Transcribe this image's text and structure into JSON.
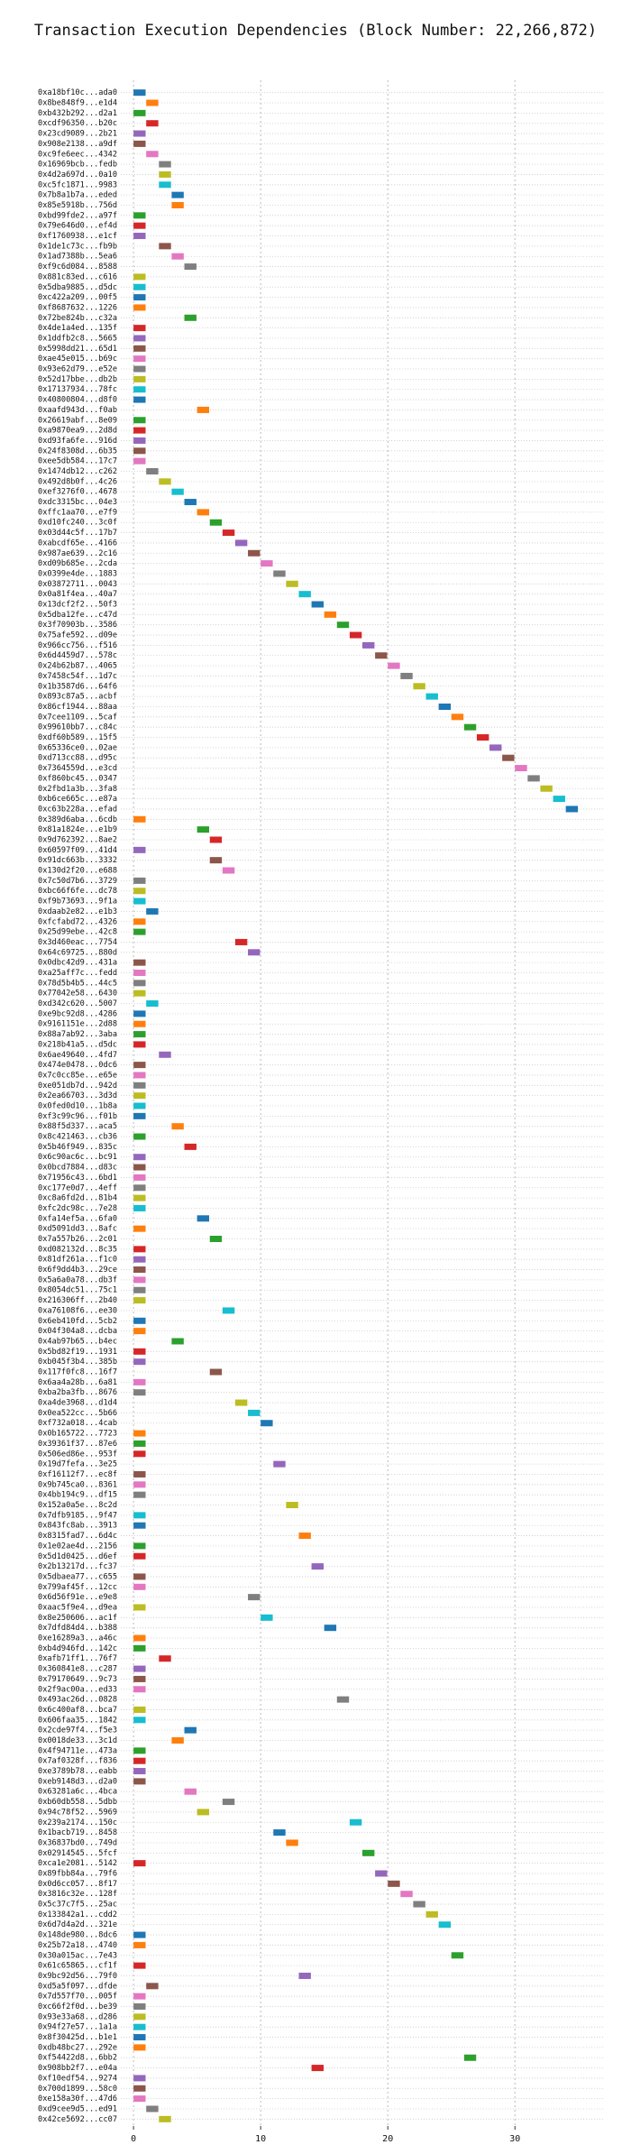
{
  "chart_data": {
    "type": "gantt",
    "title": "Transaction Execution Dependencies (Block Number: 22,266,872)",
    "categories": [
      "0xa18bf10c...ada0",
      "0x8be848f9...e1d4",
      "0xb432b292...d2a1",
      "0xcdf96350...b20c",
      "0x23cd9089...2b21",
      "0x908e2138...a9df",
      "0xc9fe6eec...4342",
      "0x16969bcb...fedb",
      "0x4d2a697d...0a10",
      "0xc5fc1871...9983",
      "0x7b8a1b7a...eded",
      "0x85e5918b...756d",
      "0xbd99fde2...a97f",
      "0x79e646d0...ef4d",
      "0xf1760938...e1cf",
      "0x1de1c73c...fb9b",
      "0x1ad7388b...5ea6",
      "0xf9c6d084...8588",
      "0x881c83ed...c616",
      "0x5dba9885...d5dc",
      "0xc422a209...00f5",
      "0xf8687632...1226",
      "0x72be824b...c32a",
      "0x4de1a4ed...135f",
      "0x1ddfb2c8...5665",
      "0x5998dd21...65d1",
      "0xae45e015...b69c",
      "0x93e62d79...e52e",
      "0x52d17bbe...db2b",
      "0x17137934...78fc",
      "0x40800804...d8f0",
      "0xaafd943d...f0ab",
      "0x26619abf...8e09",
      "0xa9870ea9...2d8d",
      "0xd93fa6fe...916d",
      "0x24f8308d...6b35",
      "0xee5db584...17c7",
      "0x1474db12...c262",
      "0x492d8b0f...4c26",
      "0xef3276f0...4678",
      "0xdc3315bc...04e3",
      "0xffc1aa70...e7f9",
      "0xd10fc240...3c0f",
      "0x03d44c5f...17b7",
      "0xabcdf65e...4166",
      "0x987ae639...2c16",
      "0xd09b685e...2cda",
      "0x0399e4de...1883",
      "0x03872711...0043",
      "0x0a81f4ea...40a7",
      "0x13dcf2f2...50f3",
      "0x5dba12fe...c47d",
      "0x3f70903b...3586",
      "0x75afe592...d09e",
      "0x966cc756...f516",
      "0x6d4459d7...578c",
      "0x24b62b87...4065",
      "0x7458c54f...1d7c",
      "0x1b3587d6...64f6",
      "0x893c87a5...acbf",
      "0x86cf1944...88aa",
      "0x7cee1109...5caf",
      "0x99610bb7...c84c",
      "0xdf60b589...15f5",
      "0x65336ce0...02ae",
      "0xd713cc88...d95c",
      "0x7364559d...e3cd",
      "0xf860bc45...0347",
      "0x2fbd1a3b...3fa8",
      "0xb6ce665c...e87a",
      "0xc63b228a...efad",
      "0x389d6aba...6cdb",
      "0x81a1824e...e1b9",
      "0x9d762392...8ae2",
      "0x60597f09...41d4",
      "0x91dc663b...3332",
      "0x130d2f20...e688",
      "0x7c50d7b6...3729",
      "0xbc66f6fe...dc78",
      "0xf9b73693...9f1a",
      "0xdaab2e82...e1b3",
      "0xfcfabd72...4326",
      "0x25d99ebe...42c8",
      "0x3d460eac...7754",
      "0x64c69725...880d",
      "0x0dbc42d9...431a",
      "0xa25aff7c...fedd",
      "0x78d5b4b5...44c5",
      "0x77042e58...6430",
      "0xd342c620...5007",
      "0xe9bc92d8...4286",
      "0x9161151e...2d88",
      "0x88a7ab92...3aba",
      "0x218b41a5...d5dc",
      "0x6ae49640...4fd7",
      "0x474e0478...0dc6",
      "0x7c0cc85e...e65e",
      "0xe051db7d...942d",
      "0x2ea66703...3d3d",
      "0x0fed0d10...1b8a",
      "0xf3c99c96...f01b",
      "0x88f5d337...aca5",
      "0x8c421463...cb36",
      "0x5b46f949...835c",
      "0x6c90ac6c...bc91",
      "0x0bcd7884...d83c",
      "0x71956c43...6bd1",
      "0xc177e0d7...4eff",
      "0xc8a6fd2d...81b4",
      "0xfc2dc98c...7e28",
      "0xfa14ef5a...6fa0",
      "0xd5091dd3...8afc",
      "0x7a557b26...2c01",
      "0xd082132d...8c35",
      "0x81df261a...f1c0",
      "0x6f9dd4b3...29ce",
      "0x5a6a0a78...db3f",
      "0x8054dc51...75c1",
      "0x216306ff...2b40",
      "0xa76108f6...ee30",
      "0x6eb410fd...5cb2",
      "0x04f304a8...dcba",
      "0x4ab97b65...b4ec",
      "0x5bd82f19...1931",
      "0xb045f3b4...385b",
      "0x117f0fc8...16f7",
      "0x6aa4a28b...6a81",
      "0xba2ba3fb...8676",
      "0xa4de3968...d1d4",
      "0x0ea522cc...5b66",
      "0xf732a018...4cab",
      "0x0b165722...7723",
      "0x39361f37...87e6",
      "0x506ed86e...953f",
      "0x19d7fefa...3e25",
      "0xf16112f7...ec8f",
      "0x9b745ca0...8361",
      "0x4bb194c9...df15",
      "0x152a0a5e...8c2d",
      "0x7dfb9185...9f47",
      "0x843fc8ab...3913",
      "0x8315fad7...6d4c",
      "0x1e02ae4d...2156",
      "0x5d1d0425...d6ef",
      "0x2b13217d...fc37",
      "0x5dbaea77...c655",
      "0x799af45f...12cc",
      "0x6d56f91e...e9e8",
      "0xaac5f9e4...d9ea",
      "0x8e250606...ac1f",
      "0x7dfd84d4...b388",
      "0xe16289a3...a46c",
      "0xb4d946fd...142c",
      "0xafb71ff1...76f7",
      "0x360841e8...c287",
      "0x79170649...9c73",
      "0x2f9ac00a...ed33",
      "0x493ac26d...0828",
      "0x6c400af8...bca7",
      "0x606faa35...1842",
      "0x2cde97f4...f5e3",
      "0x0018de33...3c1d",
      "0x4f94711e...473a",
      "0x7af0328f...f836",
      "0xe3789b78...eabb",
      "0xeb9148d3...d2a0",
      "0x63281a6c...4bca",
      "0xb60db558...5dbb",
      "0x94c78f52...5969",
      "0x239a2174...150c",
      "0x1bacb719...8458",
      "0x36837bd0...749d",
      "0x02914545...5fcf",
      "0xca1e2081...5142",
      "0x89fbb84a...79f6",
      "0x0d6cc057...8f17",
      "0x3816c32e...128f",
      "0x5c37c7f5...25ac",
      "0x133842a1...cdd2",
      "0x6d7d4a2d...321e",
      "0x148de980...8dc6",
      "0x25b72a18...4740",
      "0x30a015ac...7e43",
      "0x61c65865...cf1f",
      "0x9bc92d56...79f0",
      "0xd5a5f097...dfde",
      "0x7d557f70...005f",
      "0xc66f2f0d...be39",
      "0x93e33a68...d286",
      "0x94f27e57...1a1a",
      "0x8f30425d...b1e1",
      "0xdb48bc27...292e",
      "0xf54422d8...6bb2",
      "0x908bb2f7...e04a",
      "0xf10edf54...9274",
      "0x700d1899...58c0",
      "0xe158a30f...47d6",
      "0xd9cee9d5...ed91",
      "0x42ce5692...cc07"
    ],
    "values": [
      0,
      1,
      0,
      1,
      0,
      0,
      1,
      2,
      2,
      2,
      3,
      3,
      0,
      0,
      0,
      2,
      3,
      4,
      0,
      0,
      0,
      0,
      4,
      0,
      0,
      0,
      0,
      0,
      0,
      0,
      0,
      5,
      0,
      0,
      0,
      0,
      0,
      1,
      2,
      3,
      4,
      5,
      6,
      7,
      8,
      9,
      10,
      11,
      12,
      13,
      14,
      15,
      16,
      17,
      18,
      19,
      20,
      21,
      22,
      23,
      24,
      25,
      26,
      27,
      28,
      29,
      30,
      31,
      32,
      33,
      34,
      0,
      5,
      6,
      0,
      6,
      7,
      0,
      0,
      0,
      1,
      0,
      0,
      8,
      9,
      0,
      0,
      0,
      0,
      1,
      0,
      0,
      0,
      0,
      2,
      0,
      0,
      0,
      0,
      0,
      0,
      3,
      0,
      4,
      0,
      0,
      0,
      0,
      0,
      0,
      5,
      0,
      6,
      0,
      0,
      0,
      0,
      0,
      0,
      7,
      0,
      0,
      3,
      0,
      0,
      6,
      0,
      0,
      8,
      9,
      10,
      0,
      0,
      0,
      11,
      0,
      0,
      0,
      12,
      0,
      0,
      13,
      0,
      0,
      14,
      0,
      0,
      9,
      0,
      10,
      15,
      0,
      0,
      2,
      0,
      0,
      0,
      16,
      0,
      0,
      4,
      3,
      0,
      0,
      0,
      0,
      4,
      7,
      5,
      17,
      11,
      12,
      18,
      0,
      19,
      20,
      21,
      22,
      23,
      24,
      0,
      0,
      25,
      0,
      13,
      1,
      0,
      0,
      0,
      0,
      0,
      0,
      26,
      14,
      0,
      0,
      0,
      1,
      2
    ],
    "colors": [
      "#1f77b4",
      "#ff7f0e",
      "#2ca02c",
      "#d62728",
      "#9467bd",
      "#8c564b",
      "#e377c2",
      "#7f7f7f",
      "#bcbd22",
      "#17becf"
    ],
    "xlim": [
      -1,
      37
    ],
    "xticks": [
      0,
      10,
      20,
      30
    ],
    "grid": true
  }
}
